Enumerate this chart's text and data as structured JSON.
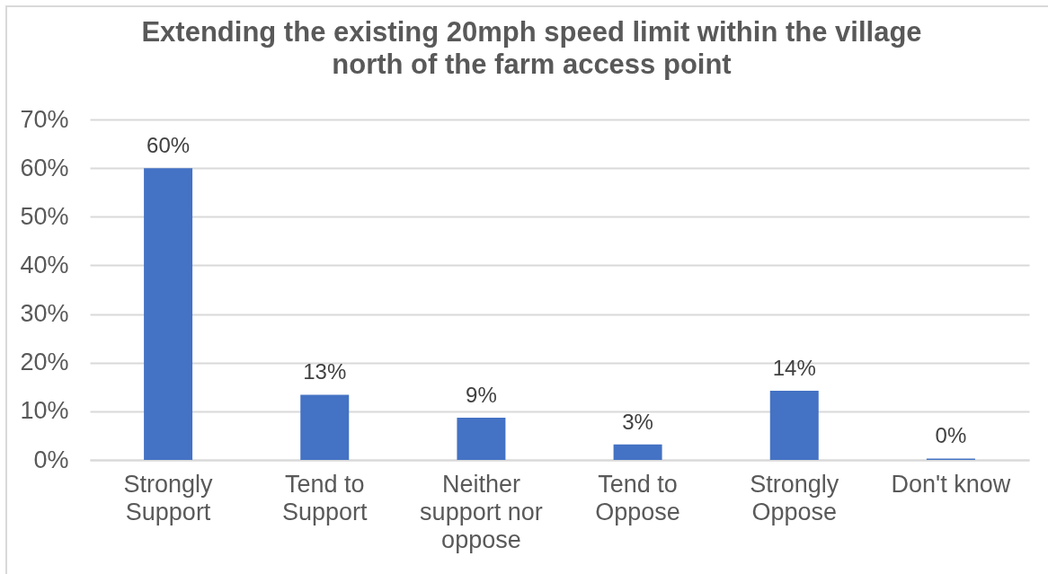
{
  "chart_data": {
    "type": "bar",
    "title": "Extending the existing 20mph speed limit within the village north of the farm access point",
    "categories": [
      "Strongly Support",
      "Tend to Support",
      "Neither support nor oppose",
      "Tend to Oppose",
      "Strongly Oppose",
      "Don't know"
    ],
    "values": [
      60,
      13.4,
      8.7,
      3.2,
      14.2,
      0.3
    ],
    "value_labels": [
      "60%",
      "13%",
      "9%",
      "3%",
      "14%",
      "0%"
    ],
    "color": "#4472c4",
    "ylim": [
      0,
      70
    ],
    "yticks": [
      {
        "value": 0,
        "label": "0%"
      },
      {
        "value": 10,
        "label": "10%"
      },
      {
        "value": 20,
        "label": "20%"
      },
      {
        "value": 30,
        "label": "30%"
      },
      {
        "value": 40,
        "label": "40%"
      },
      {
        "value": 50,
        "label": "50%"
      },
      {
        "value": 60,
        "label": "60%"
      },
      {
        "value": 70,
        "label": "70%"
      }
    ],
    "grid": "y"
  }
}
